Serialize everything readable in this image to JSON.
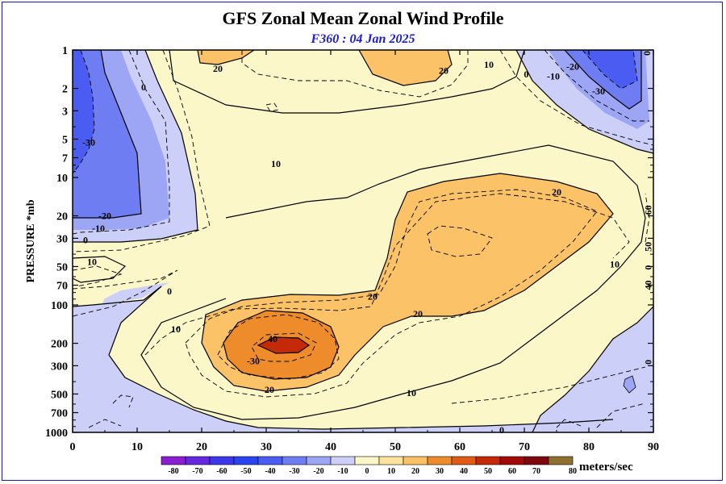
{
  "chart_data": {
    "type": "contour",
    "title": "GFS Zonal Mean Zonal Wind Profile",
    "subtitle": "F360 : 04 Jan 2025",
    "xlabel": "",
    "ylabel": "PRESSURE *mb",
    "xlim": [
      0,
      90
    ],
    "ylim": [
      1000,
      1
    ],
    "x_ticks": [
      0,
      10,
      20,
      30,
      40,
      50,
      60,
      70,
      80,
      90
    ],
    "y_ticks": [
      1,
      2,
      3,
      5,
      7,
      10,
      20,
      30,
      50,
      70,
      100,
      200,
      300,
      500,
      700,
      1000
    ],
    "y_tick_labels": [
      "1",
      "2",
      "3",
      "5",
      "7",
      "10",
      "20",
      "30",
      "50",
      "70",
      "100",
      "200",
      "300",
      "500",
      "700",
      "1000"
    ],
    "colorbar": {
      "unit": "meters/sec",
      "levels": [
        -80,
        -70,
        -60,
        -50,
        -40,
        -30,
        -20,
        -10,
        0,
        10,
        20,
        30,
        40,
        50,
        60,
        70,
        80
      ],
      "colors": [
        "#8a1ed0",
        "#6428e0",
        "#3c37e8",
        "#2a44f0",
        "#4a5cf2",
        "#6e7ef2",
        "#9ca6f4",
        "#cccff8",
        "#fbf7c9",
        "#fde39c",
        "#fbc268",
        "#ee8c2c",
        "#de5c14",
        "#c42a08",
        "#a20a08",
        "#7e080e",
        "#907030"
      ]
    },
    "contour_labels": [
      {
        "text": "20",
        "lat": 22.5,
        "p": 1.4
      },
      {
        "text": "20",
        "lat": 57.5,
        "p": 1.45
      },
      {
        "text": "10",
        "lat": 64.5,
        "p": 1.3
      },
      {
        "text": "0",
        "lat": 70.3,
        "p": 1.55
      },
      {
        "text": "-10",
        "lat": 74.5,
        "p": 1.6
      },
      {
        "text": "-20",
        "lat": 77.5,
        "p": 1.35
      },
      {
        "text": "-30",
        "lat": 81.5,
        "p": 2.1
      },
      {
        "text": "0",
        "lat": 89.5,
        "p": 1.0
      },
      {
        "text": "0",
        "lat": 11,
        "p": 1.95
      },
      {
        "text": "-30",
        "lat": 2.5,
        "p": 5.3
      },
      {
        "text": "10",
        "lat": 31.5,
        "p": 7.8
      },
      {
        "text": "20",
        "lat": 75,
        "p": 13
      },
      {
        "text": "-20",
        "lat": 5,
        "p": 20
      },
      {
        "text": "-10",
        "lat": 4,
        "p": 25
      },
      {
        "text": "0",
        "lat": 2,
        "p": 31
      },
      {
        "text": "10",
        "lat": 3,
        "p": 46
      },
      {
        "text": "0",
        "lat": 15,
        "p": 78
      },
      {
        "text": "20",
        "lat": 46.5,
        "p": 86
      },
      {
        "text": "20",
        "lat": 53.5,
        "p": 117
      },
      {
        "text": "10",
        "lat": 84,
        "p": 48
      },
      {
        "text": "10",
        "lat": 16,
        "p": 155
      },
      {
        "text": "40",
        "lat": 31,
        "p": 185
      },
      {
        "text": "-30",
        "lat": 28,
        "p": 275
      },
      {
        "text": "20",
        "lat": 30.5,
        "p": 462
      },
      {
        "text": "10",
        "lat": 52.5,
        "p": 490
      },
      {
        "text": "0",
        "lat": 66.5,
        "p": 960
      },
      {
        "text": "60",
        "lat": 89.7,
        "p": 17
      },
      {
        "text": "50",
        "lat": 89.7,
        "p": 33
      },
      {
        "text": "40",
        "lat": 89.7,
        "p": 66
      },
      {
        "text": "0",
        "lat": 89.7,
        "p": 265
      },
      {
        "text": "0",
        "lat": 89.7,
        "p": 48
      }
    ]
  }
}
